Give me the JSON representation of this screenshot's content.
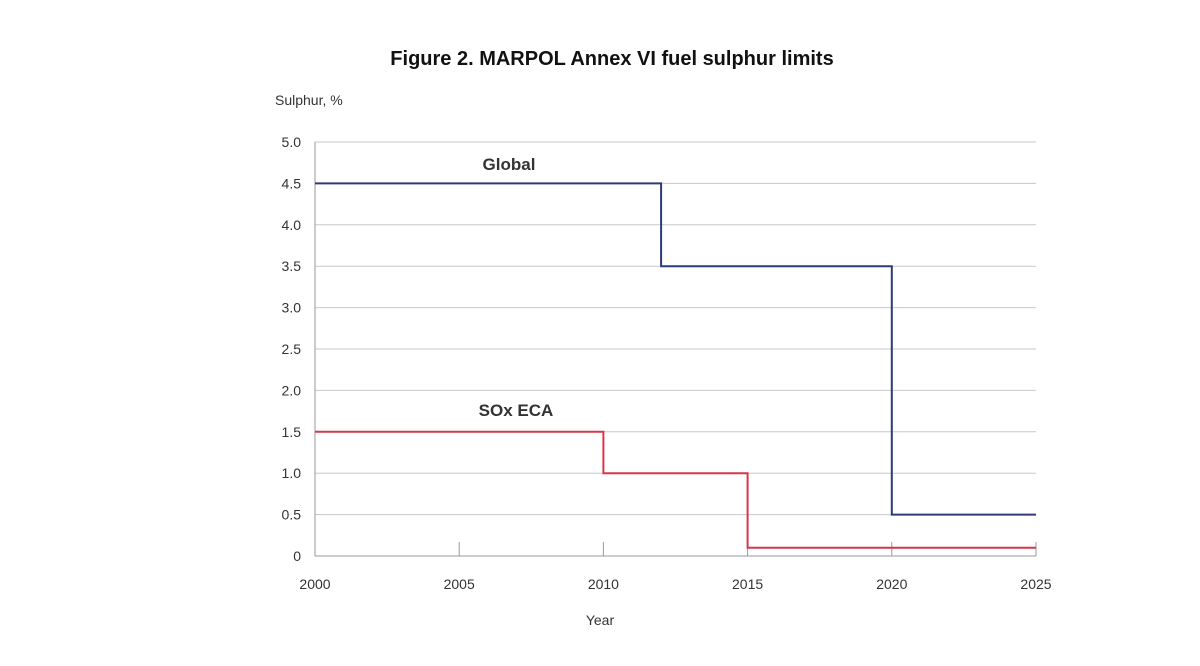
{
  "chart_data": {
    "type": "line",
    "step": true,
    "title": "Figure 2. MARPOL Annex VI fuel sulphur limits",
    "ylabel": "Sulphur, %",
    "xlabel": "Year",
    "xlim": [
      2000,
      2025
    ],
    "ylim": [
      0,
      5.0
    ],
    "x_ticks": [
      2000,
      2005,
      2010,
      2015,
      2020,
      2025
    ],
    "x_tick_labels": [
      "2000",
      "2005",
      "2010",
      "2015",
      "2020",
      "2025"
    ],
    "y_ticks": [
      0,
      0.5,
      1.0,
      1.5,
      2.0,
      2.5,
      3.0,
      3.5,
      4.0,
      4.5,
      5.0
    ],
    "y_tick_labels": [
      "0",
      "0.5",
      "1.0",
      "1.5",
      "2.0",
      "2.5",
      "3.0",
      "3.5",
      "4.0",
      "4.5",
      "5.0"
    ],
    "grid": "horizontal",
    "series": [
      {
        "name": "Global",
        "color": "#2e3a7a",
        "points": [
          [
            2000,
            4.5
          ],
          [
            2012,
            4.5
          ],
          [
            2012,
            3.5
          ],
          [
            2020,
            3.5
          ],
          [
            2020,
            0.5
          ],
          [
            2025,
            0.5
          ]
        ]
      },
      {
        "name": "SOx ECA",
        "color": "#d8374b",
        "points": [
          [
            2000,
            1.5
          ],
          [
            2010,
            1.5
          ],
          [
            2010,
            1.0
          ],
          [
            2015,
            1.0
          ],
          [
            2015,
            0.1
          ],
          [
            2025,
            0.1
          ]
        ]
      }
    ]
  }
}
